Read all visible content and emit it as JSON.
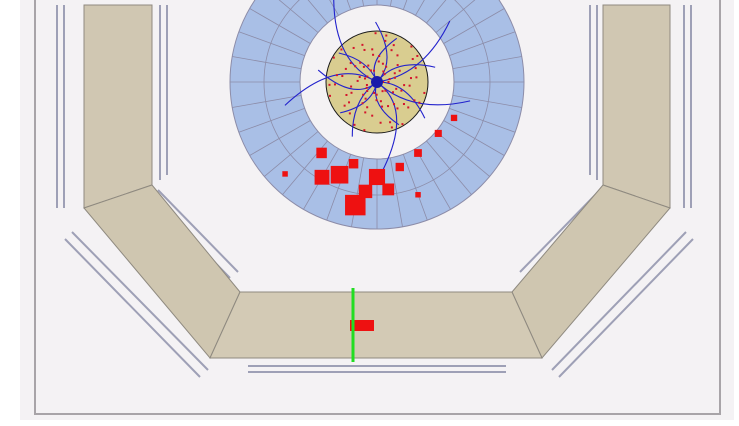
{
  "event_display": {
    "colors": {
      "page": "#ffffff",
      "canvas": "#f4f2f4",
      "frame": "#a8a4a8",
      "muon_chamber": "#d0c7b2",
      "muon_chamber_edge": "#8f8a80",
      "calorimeter": "#a9bfe6",
      "calorimeter_grid": "#8c8ca8",
      "inner_tracker": "#d9cd90",
      "inner_tracker_edge": "#1a1a1a",
      "support_lines": "#9ea0b6",
      "tracks": "#2222cc",
      "hits": "#d4142c",
      "energy_deposit": "#ee1111",
      "muon_track": "#22dd22"
    },
    "energy_deposits_gev": [
      4.2,
      3.1,
      2.6,
      2.2,
      1.8,
      1.4,
      1.1,
      0.9,
      0.7,
      0.6,
      0.5,
      0.4,
      0.3,
      0.3
    ],
    "track_count": 14
  }
}
